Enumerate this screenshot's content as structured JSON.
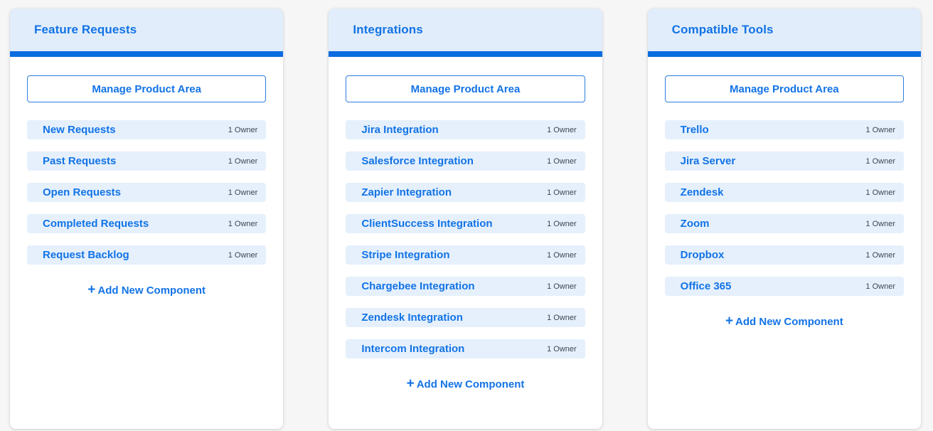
{
  "colors": {
    "page_background": "#f6f6f7",
    "card_background": "#ffffff",
    "header_background": "#e1edfa",
    "accent_bar_blue": "#0b6ce0",
    "link_blue": "#1273e6",
    "row_background": "#e5f0fc",
    "owner_text": "#3d4653"
  },
  "icons": {
    "plus": "+"
  },
  "cards": [
    {
      "title": "Feature Requests",
      "manage_button_label": "Manage Product Area",
      "add_component_label": "Add New Component",
      "items": [
        {
          "label": "New Requests",
          "owners": "1 Owner"
        },
        {
          "label": "Past Requests",
          "owners": "1 Owner"
        },
        {
          "label": "Open Requests",
          "owners": "1 Owner"
        },
        {
          "label": "Completed Requests",
          "owners": "1 Owner"
        },
        {
          "label": "Request Backlog",
          "owners": "1 Owner"
        }
      ]
    },
    {
      "title": "Integrations",
      "manage_button_label": "Manage Product Area",
      "add_component_label": "Add New Component",
      "items": [
        {
          "label": "Jira Integration",
          "owners": "1 Owner"
        },
        {
          "label": "Salesforce Integration",
          "owners": "1 Owner"
        },
        {
          "label": "Zapier Integration",
          "owners": "1 Owner"
        },
        {
          "label": "ClientSuccess Integration",
          "owners": "1 Owner"
        },
        {
          "label": "Stripe Integration",
          "owners": "1 Owner"
        },
        {
          "label": "Chargebee Integration",
          "owners": "1 Owner"
        },
        {
          "label": "Zendesk Integration",
          "owners": "1 Owner"
        },
        {
          "label": "Intercom Integration",
          "owners": "1 Owner"
        }
      ]
    },
    {
      "title": "Compatible Tools",
      "manage_button_label": "Manage Product Area",
      "add_component_label": "Add New Component",
      "items": [
        {
          "label": "Trello",
          "owners": "1 Owner"
        },
        {
          "label": "Jira Server",
          "owners": "1 Owner"
        },
        {
          "label": "Zendesk",
          "owners": "1 Owner"
        },
        {
          "label": "Zoom",
          "owners": "1 Owner"
        },
        {
          "label": "Dropbox",
          "owners": "1 Owner"
        },
        {
          "label": "Office 365",
          "owners": "1 Owner"
        }
      ]
    }
  ]
}
